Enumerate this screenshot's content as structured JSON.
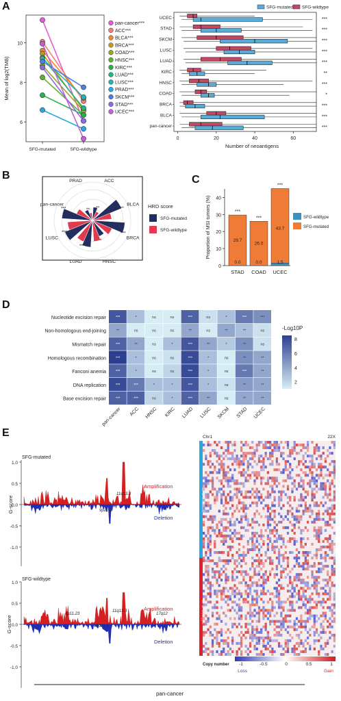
{
  "figure_caption": "pan-cancer",
  "panels": {
    "A": "A",
    "B": "B",
    "C": "C",
    "D": "D",
    "E": "E"
  },
  "colors": {
    "mutated_blue": "#5aacd6",
    "wildtype_red": "#c04a64",
    "hrd_mutated": "#232d5e",
    "hrd_wildtype": "#e23a4e",
    "msi_wildtype": "#3f8fc4",
    "msi_mutated": "#ee7b36",
    "heat_high": "#2d3f8f",
    "heat_low": "#d7edf6",
    "amp": "#d42020",
    "del": "#1f2fb4"
  },
  "chart_data": [
    {
      "id": "A-left",
      "type": "line",
      "ylabel": "Mean of log2(TMB)",
      "x": [
        "SFG-mutated",
        "SFG-wildtype"
      ],
      "yticks": [
        6,
        8,
        10
      ],
      "ylim": [
        5.0,
        11.4
      ],
      "series": [
        {
          "name": "pan-cancer",
          "sig": "***",
          "color": "#e85bd8",
          "values": [
            11.15,
            6.05
          ]
        },
        {
          "name": "ACC",
          "sig": "***",
          "color": "#f47c74",
          "values": [
            10.05,
            7.05
          ]
        },
        {
          "name": "BLCA",
          "sig": "***",
          "color": "#e88a2e",
          "values": [
            9.6,
            7.2
          ]
        },
        {
          "name": "BRCA",
          "sig": "***",
          "color": "#c69b16",
          "values": [
            9.45,
            6.6
          ]
        },
        {
          "name": "COAD",
          "sig": "***",
          "color": "#9aa91f",
          "values": [
            8.85,
            6.55
          ]
        },
        {
          "name": "HNSC",
          "sig": "***",
          "color": "#5cb42c",
          "values": [
            8.25,
            6.35
          ]
        },
        {
          "name": "KIRC",
          "sig": "***",
          "color": "#27b34a",
          "values": [
            7.35,
            6.35
          ]
        },
        {
          "name": "LUAD",
          "sig": "***",
          "color": "#20b58a",
          "values": [
            9.25,
            6.7
          ]
        },
        {
          "name": "LUSC",
          "sig": "***",
          "color": "#23b5b5",
          "values": [
            9.2,
            7.25
          ]
        },
        {
          "name": "PRAD",
          "sig": "***",
          "color": "#27a9e1",
          "values": [
            6.6,
            5.65
          ]
        },
        {
          "name": "SKCM",
          "sig": "***",
          "color": "#4a7ee0",
          "values": [
            9.05,
            7.75
          ]
        },
        {
          "name": "STAD",
          "sig": "***",
          "color": "#8b6be0",
          "values": [
            8.75,
            6.05
          ]
        },
        {
          "name": "UCEC",
          "sig": "***",
          "color": "#c45fd8",
          "values": [
            9.95,
            5.15
          ]
        }
      ]
    },
    {
      "id": "A-right",
      "type": "box",
      "xlabel": "Number of neoantigens",
      "xticks": [
        0,
        20,
        40,
        60
      ],
      "xlim": [
        -2,
        72
      ],
      "legend": [
        "SFG-mutated",
        "SFG-wildtype"
      ],
      "categories": [
        {
          "name": "UCEC",
          "sig": "***",
          "mut": [
            2,
            8,
            12,
            44,
            70
          ],
          "wt": [
            1,
            5,
            8,
            10,
            40
          ]
        },
        {
          "name": "STAD",
          "sig": "***",
          "mut": [
            2,
            12,
            20,
            33,
            70
          ],
          "wt": [
            1,
            8,
            12,
            22,
            65
          ]
        },
        {
          "name": "SKCM",
          "sig": "***",
          "mut": [
            3,
            22,
            40,
            57,
            72
          ],
          "wt": [
            2,
            10,
            20,
            34,
            72
          ]
        },
        {
          "name": "LUSC",
          "sig": "***",
          "mut": [
            4,
            24,
            32,
            40,
            72
          ],
          "wt": [
            3,
            20,
            27,
            38,
            70
          ]
        },
        {
          "name": "LUAD",
          "sig": "***",
          "mut": [
            4,
            26,
            36,
            49,
            72
          ],
          "wt": [
            3,
            12,
            22,
            33,
            72
          ]
        },
        {
          "name": "KIRC",
          "sig": "**",
          "mut": [
            2,
            6,
            10,
            14,
            40
          ],
          "wt": [
            1,
            5,
            8,
            12,
            46
          ]
        },
        {
          "name": "HNSC",
          "sig": "***",
          "mut": [
            2,
            10,
            16,
            20,
            55
          ],
          "wt": [
            1,
            6,
            11,
            16,
            70
          ]
        },
        {
          "name": "COAD",
          "sig": "*",
          "mut": [
            2,
            12,
            16,
            19,
            58
          ],
          "wt": [
            1,
            9,
            12,
            15,
            72
          ]
        },
        {
          "name": "BRCA",
          "sig": "***",
          "mut": [
            1,
            4,
            9,
            14,
            72
          ],
          "wt": [
            1,
            3,
            5,
            8,
            72
          ]
        },
        {
          "name": "BLCA",
          "sig": "***",
          "mut": [
            2,
            12,
            22,
            45,
            72
          ],
          "wt": [
            1,
            15,
            20,
            25,
            72
          ]
        },
        {
          "name": "pan-cancer",
          "sig": "***",
          "mut": [
            2,
            9,
            18,
            34,
            72
          ],
          "wt": [
            1,
            6,
            12,
            23,
            72
          ]
        }
      ]
    },
    {
      "id": "B",
      "type": "radial-bar",
      "legend_title": "HRD score",
      "legend": [
        "SFG-mutated",
        "SFG-wildtype"
      ],
      "categories": [
        {
          "name": "ACC",
          "sig": "**",
          "mut": 0.35,
          "wt": 0.25
        },
        {
          "name": "BLCA",
          "sig": "**",
          "mut": 0.82,
          "wt": 0.5
        },
        {
          "name": "BRCA",
          "sig": "***",
          "mut": 0.85,
          "wt": 0.55
        },
        {
          "name": "HNSC",
          "sig": "*",
          "mut": 0.45,
          "wt": 0.55
        },
        {
          "name": "LUAD",
          "sig": "***",
          "mut": 0.7,
          "wt": 0.6
        },
        {
          "name": "LUSC",
          "sig": "***",
          "mut": 0.78,
          "wt": 0.65
        },
        {
          "name": "pan-cancer",
          "sig": "***",
          "mut": 0.8,
          "wt": 0.45
        },
        {
          "name": "PRAD",
          "sig": "**",
          "mut": 0.3,
          "wt": 0.2
        }
      ]
    },
    {
      "id": "C",
      "type": "bar",
      "ylabel": "Proportion of MSI tumors (%)",
      "yticks": [
        0,
        10,
        20,
        30,
        40
      ],
      "ylim": [
        0,
        45
      ],
      "legend": [
        "SFG-wildtype",
        "SFG-mutated"
      ],
      "categories": [
        "STAD",
        "COAD",
        "UCEC"
      ],
      "series": [
        {
          "name": "SFG-mutated",
          "values": [
            29.7,
            26.0,
            43.7
          ],
          "labels": [
            "29.7",
            "26.0",
            "43.7"
          ]
        },
        {
          "name": "SFG-wildtype",
          "values": [
            0.0,
            0.0,
            1.5
          ],
          "labels": [
            "0.0",
            "0.0",
            "1.5"
          ]
        }
      ],
      "sig": [
        "***",
        "***",
        "***"
      ]
    },
    {
      "id": "D",
      "type": "heatmap",
      "legend_title": "-Log10P",
      "legend_ticks": [
        2,
        4,
        6,
        8
      ],
      "rows": [
        "Nucleotide excision repair",
        "Non-homologous end-joining",
        "Mismatch repair",
        "Homologous recombination",
        "Fanconi anemia",
        "DNA replication",
        "Base excision repair"
      ],
      "cols": [
        "pan-cancer",
        "ACC",
        "HNSC",
        "KIRC",
        "LUAD",
        "LUSC",
        "SKCM",
        "STAD",
        "UCEC"
      ],
      "values": [
        [
          7.5,
          3.0,
          1.0,
          1.0,
          7.0,
          1.5,
          3.0,
          6.0,
          5.0
        ],
        [
          4.0,
          1.0,
          1.0,
          1.0,
          4.0,
          1.0,
          4.0,
          3.0,
          1.5
        ],
        [
          7.0,
          4.0,
          1.0,
          3.0,
          7.5,
          4.0,
          2.5,
          5.0,
          1.5
        ],
        [
          8.5,
          3.0,
          1.0,
          1.5,
          8.0,
          3.0,
          1.0,
          5.0,
          4.0
        ],
        [
          7.0,
          3.0,
          1.0,
          2.0,
          8.0,
          3.0,
          1.0,
          6.0,
          4.0
        ],
        [
          8.0,
          6.0,
          3.0,
          3.0,
          7.5,
          3.0,
          1.5,
          4.5,
          4.0
        ],
        [
          7.0,
          7.0,
          2.0,
          3.0,
          7.0,
          4.0,
          1.0,
          4.0,
          4.0
        ]
      ],
      "labels": [
        [
          "***",
          "*",
          "ns",
          "ns",
          "***",
          "ns",
          "*",
          "***",
          "***"
        ],
        [
          "**",
          "ns",
          "ns",
          "ns",
          "**",
          "ns",
          "**",
          "**",
          "ns"
        ],
        [
          "***",
          "**",
          "ns",
          "*",
          "***",
          "**",
          "*",
          "**",
          "ns"
        ],
        [
          "***",
          "*",
          "ns",
          "ns",
          "***",
          "*",
          "ns",
          "**",
          "**"
        ],
        [
          "***",
          "*",
          "ns",
          "ns",
          "***",
          "*",
          "ns",
          "***",
          "**"
        ],
        [
          "***",
          "***",
          "*",
          "*",
          "***",
          "*",
          "ns",
          "**",
          "**"
        ],
        [
          "***",
          "***",
          "ns",
          "*",
          "***",
          "**",
          "ns",
          "**",
          "**"
        ]
      ]
    },
    {
      "id": "E-gistic",
      "type": "area",
      "ylabel": "G-score",
      "yticks": [
        "-1.0",
        "-0.5",
        "0.0",
        "0.5",
        "1.0"
      ],
      "plots": [
        {
          "title": "SFG-mutated",
          "amp_label": "Amplification",
          "del_label": "Deletion",
          "peaks": [
            "11q13.3",
            "9p21.3"
          ]
        },
        {
          "title": "SFG-wildtype",
          "amp_label": "Amplification",
          "del_label": "Deletion",
          "peaks": [
            "8p11.23",
            "11q13.3",
            "17q12",
            "9p21.3"
          ]
        }
      ]
    },
    {
      "id": "E-heatmap",
      "type": "heatmap",
      "top_left": "Chr1",
      "top_right": "22X",
      "side_labels": [
        "SFG-mutated",
        "SFG-wildtype"
      ],
      "legend_label": "Copy number",
      "legend_ticks": [
        "-1",
        "-0.5",
        "0",
        "0.5",
        "1"
      ],
      "legend_ends": [
        "Loss",
        "Gain"
      ]
    }
  ]
}
